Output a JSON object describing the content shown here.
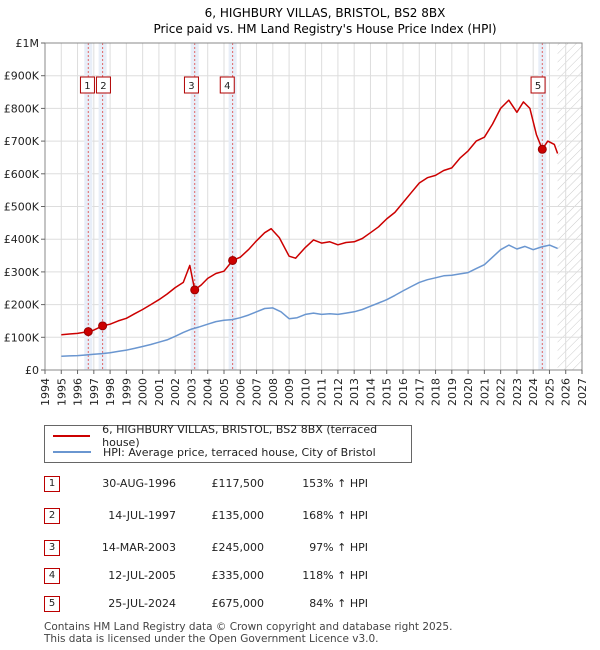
{
  "chart_data": {
    "type": "line",
    "title": "6, HIGHBURY VILLAS, BRISTOL, BS2 8BX",
    "subtitle": "Price paid vs. HM Land Registry's House Price Index (HPI)",
    "xlabel": "",
    "ylabel": "",
    "xlim": [
      1994,
      2027
    ],
    "ylim": [
      0,
      1000000
    ],
    "x_ticks": [
      "1994",
      "1995",
      "1996",
      "1997",
      "1998",
      "1999",
      "2000",
      "2001",
      "2002",
      "2003",
      "2004",
      "2005",
      "2006",
      "2007",
      "2008",
      "2009",
      "2010",
      "2011",
      "2012",
      "2013",
      "2014",
      "2015",
      "2016",
      "2017",
      "2018",
      "2019",
      "2020",
      "2021",
      "2022",
      "2023",
      "2024",
      "2025",
      "2026",
      "2027"
    ],
    "y_ticks": [
      {
        "value": 0,
        "label": "£0"
      },
      {
        "value": 100000,
        "label": "£100K"
      },
      {
        "value": 200000,
        "label": "£200K"
      },
      {
        "value": 300000,
        "label": "£300K"
      },
      {
        "value": 400000,
        "label": "£400K"
      },
      {
        "value": 500000,
        "label": "£500K"
      },
      {
        "value": 600000,
        "label": "£600K"
      },
      {
        "value": 700000,
        "label": "£700K"
      },
      {
        "value": 800000,
        "label": "£800K"
      },
      {
        "value": 900000,
        "label": "£900K"
      },
      {
        "value": 1000000,
        "label": "£1M"
      }
    ],
    "grid": true,
    "data_end_x": 2025.5,
    "series": [
      {
        "name": "6, HIGHBURY VILLAS, BRISTOL, BS2 8BX (terraced house)",
        "color": "#cc0000",
        "points": [
          [
            1995.0,
            108000
          ],
          [
            1995.5,
            110000
          ],
          [
            1996.0,
            112000
          ],
          [
            1996.66,
            117500
          ],
          [
            1997.0,
            122000
          ],
          [
            1997.54,
            135000
          ],
          [
            1998.0,
            140000
          ],
          [
            1998.5,
            150000
          ],
          [
            1999.0,
            158000
          ],
          [
            1999.5,
            172000
          ],
          [
            2000.0,
            185000
          ],
          [
            2000.5,
            200000
          ],
          [
            2001.0,
            215000
          ],
          [
            2001.5,
            232000
          ],
          [
            2002.0,
            252000
          ],
          [
            2002.5,
            268000
          ],
          [
            2002.9,
            320000
          ],
          [
            2003.2,
            245000
          ],
          [
            2003.6,
            260000
          ],
          [
            2004.0,
            280000
          ],
          [
            2004.5,
            295000
          ],
          [
            2005.0,
            302000
          ],
          [
            2005.53,
            335000
          ],
          [
            2006.0,
            345000
          ],
          [
            2006.5,
            368000
          ],
          [
            2007.0,
            395000
          ],
          [
            2007.5,
            420000
          ],
          [
            2007.9,
            432000
          ],
          [
            2008.4,
            405000
          ],
          [
            2009.0,
            348000
          ],
          [
            2009.4,
            342000
          ],
          [
            2010.0,
            375000
          ],
          [
            2010.5,
            398000
          ],
          [
            2011.0,
            388000
          ],
          [
            2011.5,
            392000
          ],
          [
            2012.0,
            383000
          ],
          [
            2012.5,
            390000
          ],
          [
            2013.0,
            392000
          ],
          [
            2013.5,
            402000
          ],
          [
            2014.0,
            420000
          ],
          [
            2014.5,
            438000
          ],
          [
            2015.0,
            462000
          ],
          [
            2015.5,
            482000
          ],
          [
            2016.0,
            512000
          ],
          [
            2016.5,
            542000
          ],
          [
            2017.0,
            572000
          ],
          [
            2017.5,
            588000
          ],
          [
            2018.0,
            595000
          ],
          [
            2018.5,
            610000
          ],
          [
            2019.0,
            618000
          ],
          [
            2019.5,
            648000
          ],
          [
            2020.0,
            670000
          ],
          [
            2020.5,
            700000
          ],
          [
            2021.0,
            712000
          ],
          [
            2021.5,
            752000
          ],
          [
            2022.0,
            800000
          ],
          [
            2022.5,
            825000
          ],
          [
            2023.0,
            788000
          ],
          [
            2023.4,
            820000
          ],
          [
            2023.8,
            800000
          ],
          [
            2024.2,
            720000
          ],
          [
            2024.56,
            675000
          ],
          [
            2024.9,
            700000
          ],
          [
            2025.3,
            690000
          ],
          [
            2025.5,
            662000
          ]
        ]
      },
      {
        "name": "HPI: Average price, terraced house, City of Bristol",
        "color": "#6a96d0",
        "points": [
          [
            1995.0,
            42000
          ],
          [
            1995.5,
            43000
          ],
          [
            1996.0,
            44000
          ],
          [
            1996.5,
            46000
          ],
          [
            1997.0,
            48000
          ],
          [
            1997.5,
            50000
          ],
          [
            1998.0,
            53000
          ],
          [
            1998.5,
            57000
          ],
          [
            1999.0,
            61000
          ],
          [
            1999.5,
            66000
          ],
          [
            2000.0,
            72000
          ],
          [
            2000.5,
            78000
          ],
          [
            2001.0,
            85000
          ],
          [
            2001.5,
            92000
          ],
          [
            2002.0,
            103000
          ],
          [
            2002.5,
            115000
          ],
          [
            2003.0,
            125000
          ],
          [
            2003.5,
            132000
          ],
          [
            2004.0,
            140000
          ],
          [
            2004.5,
            148000
          ],
          [
            2005.0,
            152000
          ],
          [
            2005.5,
            154000
          ],
          [
            2006.0,
            160000
          ],
          [
            2006.5,
            168000
          ],
          [
            2007.0,
            178000
          ],
          [
            2007.5,
            188000
          ],
          [
            2008.0,
            190000
          ],
          [
            2008.5,
            178000
          ],
          [
            2009.0,
            157000
          ],
          [
            2009.5,
            160000
          ],
          [
            2010.0,
            170000
          ],
          [
            2010.5,
            174000
          ],
          [
            2011.0,
            170000
          ],
          [
            2011.5,
            172000
          ],
          [
            2012.0,
            170000
          ],
          [
            2012.5,
            174000
          ],
          [
            2013.0,
            178000
          ],
          [
            2013.5,
            185000
          ],
          [
            2014.0,
            195000
          ],
          [
            2014.5,
            205000
          ],
          [
            2015.0,
            215000
          ],
          [
            2015.5,
            228000
          ],
          [
            2016.0,
            242000
          ],
          [
            2016.5,
            255000
          ],
          [
            2017.0,
            268000
          ],
          [
            2017.5,
            276000
          ],
          [
            2018.0,
            282000
          ],
          [
            2018.5,
            288000
          ],
          [
            2019.0,
            290000
          ],
          [
            2019.5,
            294000
          ],
          [
            2020.0,
            298000
          ],
          [
            2020.5,
            310000
          ],
          [
            2021.0,
            322000
          ],
          [
            2021.5,
            345000
          ],
          [
            2022.0,
            368000
          ],
          [
            2022.5,
            382000
          ],
          [
            2023.0,
            370000
          ],
          [
            2023.5,
            378000
          ],
          [
            2024.0,
            368000
          ],
          [
            2024.5,
            376000
          ],
          [
            2025.0,
            382000
          ],
          [
            2025.5,
            372000
          ]
        ]
      }
    ],
    "sales": [
      {
        "num": "1",
        "x": 1996.66,
        "price": 117500
      },
      {
        "num": "2",
        "x": 1997.54,
        "price": 135000
      },
      {
        "num": "3",
        "x": 2003.2,
        "price": 245000
      },
      {
        "num": "4",
        "x": 2005.53,
        "price": 335000
      },
      {
        "num": "5",
        "x": 2024.56,
        "price": 675000
      }
    ],
    "label_groups": [
      {
        "nums": [
          "1",
          "2"
        ],
        "x": 1997.1
      },
      {
        "nums": [
          "3"
        ],
        "x": 2003.0
      },
      {
        "nums": [
          "4"
        ],
        "x": 2005.2
      },
      {
        "nums": [
          "5"
        ],
        "x": 2024.3
      }
    ]
  },
  "legend": {
    "property_label": "6, HIGHBURY VILLAS, BRISTOL, BS2 8BX (terraced house)",
    "hpi_label": "HPI: Average price, terraced house, City of Bristol"
  },
  "sales_table": [
    {
      "num": "1",
      "date": "30-AUG-1996",
      "price": "£117,500",
      "hpi": "153% ↑ HPI"
    },
    {
      "num": "2",
      "date": "14-JUL-1997",
      "price": "£135,000",
      "hpi": "168% ↑ HPI"
    },
    {
      "num": "3",
      "date": "14-MAR-2003",
      "price": "£245,000",
      "hpi": "97% ↑ HPI"
    },
    {
      "num": "4",
      "date": "12-JUL-2005",
      "price": "£335,000",
      "hpi": "118% ↑ HPI"
    },
    {
      "num": "5",
      "date": "25-JUL-2024",
      "price": "£675,000",
      "hpi": "84% ↑ HPI"
    }
  ],
  "footer": {
    "line1": "Contains HM Land Registry data © Crown copyright and database right 2025.",
    "line2": "This data is licensed under the Open Government Licence v3.0."
  },
  "colors": {
    "property": "#cc0000",
    "hpi": "#6a96d0",
    "grid": "#dddddd",
    "highlight": "#e8eef8"
  }
}
